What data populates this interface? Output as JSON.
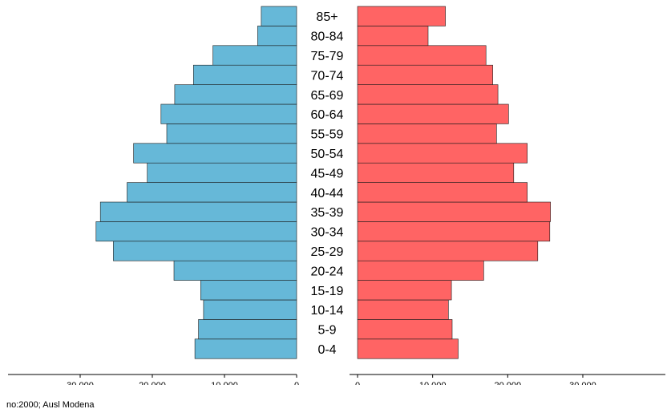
{
  "chart_data": {
    "type": "bar",
    "orientation": "horizontal",
    "layout": "population-pyramid",
    "categories": [
      "0-4",
      "5-9",
      "10-14",
      "15-19",
      "20-24",
      "25-29",
      "30-34",
      "35-39",
      "40-44",
      "45-49",
      "50-54",
      "55-59",
      "60-64",
      "65-69",
      "70-74",
      "75-79",
      "80-84",
      "85+"
    ],
    "series": [
      {
        "side": "left",
        "color": "#66b8d8",
        "values": [
          14100,
          13600,
          12900,
          13300,
          17000,
          25400,
          27800,
          27200,
          23500,
          20700,
          22600,
          18000,
          18800,
          16900,
          14300,
          11600,
          5400,
          4900
        ]
      },
      {
        "side": "right",
        "color": "#ff6464",
        "values": [
          13400,
          12600,
          12100,
          12500,
          16800,
          24000,
          25600,
          25700,
          22600,
          20800,
          22600,
          18500,
          20100,
          18700,
          18000,
          17100,
          9400,
          11700
        ]
      }
    ],
    "left_axis": {
      "ticks": [
        "30.000",
        "20.000",
        "10.000",
        "0"
      ],
      "tick_values": [
        30000,
        20000,
        10000,
        0
      ],
      "xlim": [
        0,
        40000
      ]
    },
    "right_axis": {
      "ticks": [
        "0",
        "10.000",
        "20.000",
        "30.000"
      ],
      "tick_values": [
        0,
        10000,
        20000,
        30000
      ],
      "xlim": [
        0,
        41000
      ]
    },
    "title": "",
    "xlabel": "",
    "ylabel": ""
  },
  "footnote": "no:2000; Ausl Modena"
}
